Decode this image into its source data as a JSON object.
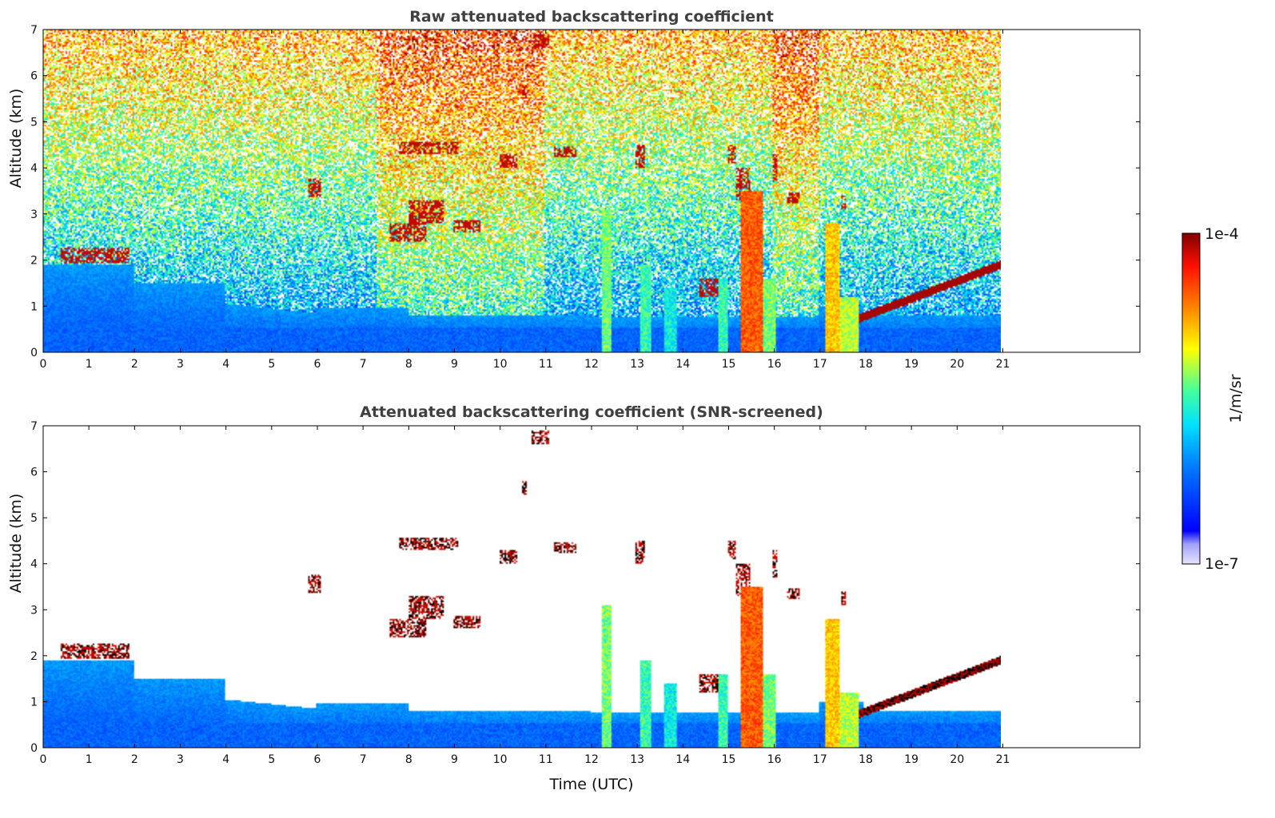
{
  "chart_data": [
    {
      "type": "heatmap",
      "title": "Raw attenuated backscattering coefficient",
      "xlabel": "",
      "ylabel": "Altitude (km)",
      "xlim": [
        0,
        24
      ],
      "ylim": [
        0,
        7
      ],
      "data_xmax": 21,
      "xticks": [
        0,
        1,
        2,
        3,
        4,
        5,
        6,
        7,
        8,
        9,
        10,
        11,
        12,
        13,
        14,
        15,
        16,
        17,
        18,
        19,
        20,
        21
      ],
      "yticks": [
        0,
        1,
        2,
        3,
        4,
        5,
        6,
        7
      ],
      "screened": false,
      "layers": [
        {
          "name": "early-layer",
          "x": [
            0.4,
            1.9
          ],
          "y": [
            1.9,
            2.3
          ]
        },
        {
          "name": "cloud-6",
          "x": [
            5.8,
            6.1
          ],
          "y": [
            3.4,
            3.8
          ]
        },
        {
          "name": "cloud-8.5",
          "x": [
            7.8,
            9.1
          ],
          "y": [
            4.3,
            4.6
          ]
        },
        {
          "name": "cloud-11",
          "x": [
            10.7,
            11.1
          ],
          "y": [
            6.6,
            6.9
          ]
        },
        {
          "name": "cloud-11.5",
          "x": [
            11.2,
            11.7
          ],
          "y": [
            4.2,
            4.4
          ]
        },
        {
          "name": "boundary-layer-top",
          "x": [
            17.8,
            21.0
          ],
          "y": [
            0.7,
            1.9
          ]
        }
      ],
      "convective_columns": [
        {
          "x": 12.3,
          "top_km": 3.1
        },
        {
          "x": 13.2,
          "top_km": 1.9
        },
        {
          "x": 15.5,
          "top_km": 3.5
        },
        {
          "x": 17.3,
          "top_km": 2.8
        }
      ]
    },
    {
      "type": "heatmap",
      "title": "Attenuated backscattering coefficient (SNR-screened)",
      "xlabel": "Time (UTC)",
      "ylabel": "Altitude (km)",
      "xlim": [
        0,
        24
      ],
      "ylim": [
        0,
        7
      ],
      "data_xmax": 21,
      "xticks": [
        0,
        1,
        2,
        3,
        4,
        5,
        6,
        7,
        8,
        9,
        10,
        11,
        12,
        13,
        14,
        15,
        16,
        17,
        18,
        19,
        20,
        21
      ],
      "yticks": [
        0,
        1,
        2,
        3,
        4,
        5,
        6,
        7
      ],
      "screened": true
    }
  ],
  "colorbar": {
    "label": "1/m/sr",
    "max_label": "1e-4",
    "min_label": "1e-7",
    "colors": [
      "#e6e6fa",
      "#0000ff",
      "#00bfff",
      "#00ffd0",
      "#ffff00",
      "#ff8000",
      "#ff2000",
      "#800000"
    ]
  }
}
